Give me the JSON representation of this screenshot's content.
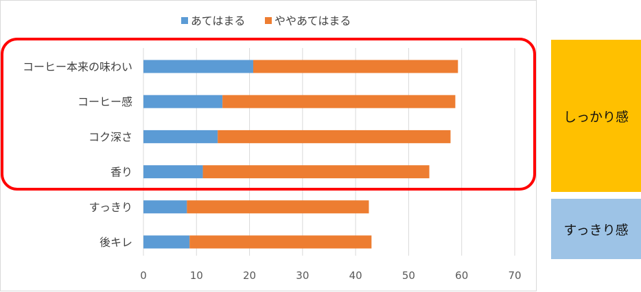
{
  "chart_data": {
    "type": "bar",
    "orientation": "horizontal",
    "stacked": true,
    "categories": [
      "コーヒー本来の味わい",
      "コーヒー感",
      "コク深さ",
      "香り",
      "すっきり",
      "後キレ"
    ],
    "series": [
      {
        "name": "あてはまる",
        "color": "#5b9bd5",
        "values": [
          20.7,
          14.9,
          14.0,
          11.2,
          8.2,
          8.7
        ]
      },
      {
        "name": "ややあてはまる",
        "color": "#ed7d31",
        "values": [
          38.6,
          43.9,
          43.9,
          42.7,
          34.3,
          34.3
        ]
      }
    ],
    "xlim": [
      0,
      70
    ],
    "xticks": [
      0,
      10,
      20,
      30,
      40,
      50,
      60,
      70
    ],
    "grid": true,
    "legend_position": "top"
  },
  "highlight": {
    "color": "#ff0000",
    "categories": [
      "コーヒー本来の味わい",
      "コーヒー感",
      "コク深さ",
      "香り"
    ]
  },
  "side_labels": {
    "shikkari": {
      "text": "しっかり感",
      "color": "#ffc000"
    },
    "sukkiri": {
      "text": "すっきり感",
      "color": "#9dc3e6"
    }
  }
}
